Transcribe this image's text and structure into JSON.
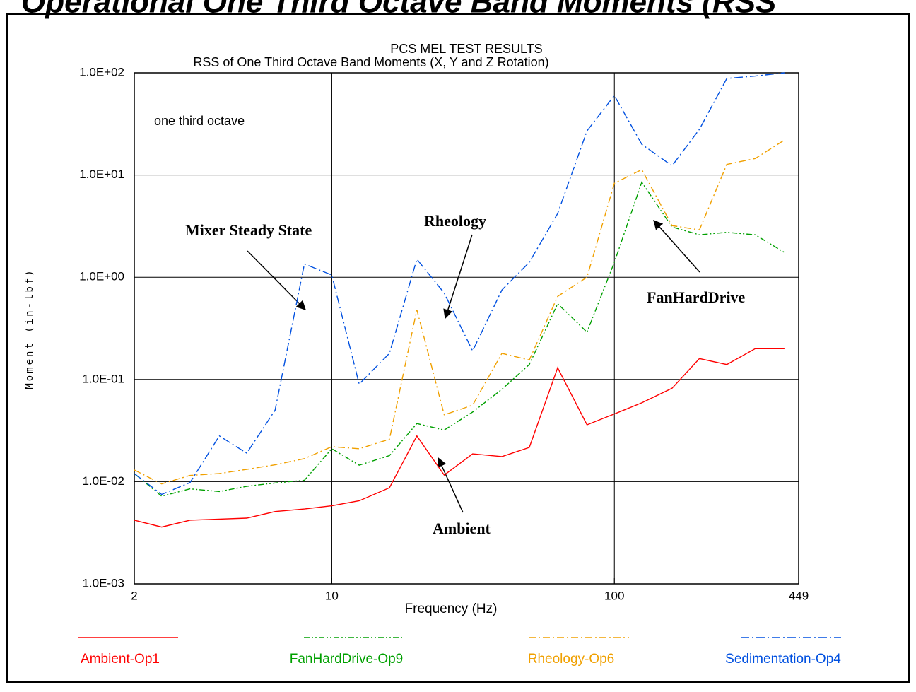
{
  "chart_data": {
    "type": "line",
    "banner": "Operational One Third Octave Band Moments (RSS",
    "title": "PCS MEL TEST RESULTS",
    "subtitle": "RSS of One Third Octave Band Moments (X, Y and Z Rotation)",
    "x_label": "Frequency (Hz)",
    "y_label": "Moment (in-lbf)",
    "note": "one third octave",
    "annotations": [
      "Mixer Steady State",
      "Rheology",
      "FanHardDrive",
      "Ambient"
    ],
    "x_log": true,
    "y_log": true,
    "grid": true,
    "xlim": [
      2,
      449
    ],
    "xticks": [
      2,
      10,
      100,
      449
    ],
    "ylim": [
      0.001,
      100
    ],
    "yticks": [
      {
        "value": 0.001,
        "label": "1.0E-03"
      },
      {
        "value": 0.01,
        "label": "1.0E-02"
      },
      {
        "value": 0.1,
        "label": "1.0E-01"
      },
      {
        "value": 1,
        "label": "1.0E+00"
      },
      {
        "value": 10,
        "label": "1.0E+01"
      },
      {
        "value": 100,
        "label": "1.0E+02"
      }
    ],
    "x": [
      2,
      2.5,
      3.15,
      4,
      5,
      6.3,
      8,
      10,
      12.5,
      16,
      20,
      25,
      31.5,
      40,
      50,
      63,
      80,
      100,
      125,
      160,
      200,
      250,
      315,
      400
    ],
    "series": [
      {
        "name": "Ambient-Op1",
        "color": "#ff0000",
        "dash": "",
        "values": [
          0.0042,
          0.0036,
          0.0042,
          0.0043,
          0.0044,
          0.0051,
          0.0054,
          0.0058,
          0.0065,
          0.0087,
          0.028,
          0.0116,
          0.0187,
          0.0176,
          0.0216,
          0.13,
          0.036,
          0.046,
          0.059,
          0.082,
          0.16,
          0.14,
          0.2,
          0.2
        ]
      },
      {
        "name": "FanHardDrive-Op9",
        "color": "#00a000",
        "dash": "8,3,2,3,2,3",
        "values": [
          0.012,
          0.0072,
          0.0085,
          0.008,
          0.009,
          0.0097,
          0.0103,
          0.021,
          0.0145,
          0.018,
          0.037,
          0.032,
          0.048,
          0.08,
          0.14,
          0.55,
          0.29,
          1.4,
          8.5,
          3.1,
          2.6,
          2.75,
          2.6,
          1.75
        ]
      },
      {
        "name": "Rheology-Op6",
        "color": "#f0a000",
        "dash": "10,4,2,4",
        "values": [
          0.013,
          0.0095,
          0.0115,
          0.012,
          0.0132,
          0.0146,
          0.0168,
          0.022,
          0.021,
          0.026,
          0.48,
          0.045,
          0.056,
          0.18,
          0.155,
          0.65,
          1.0,
          8.3,
          11.3,
          3.2,
          2.9,
          12.7,
          14.5,
          22
        ]
      },
      {
        "name": "Sedimentation-Op4",
        "color": "#0050e0",
        "dash": "12,4,2,4",
        "values": [
          0.012,
          0.0075,
          0.0098,
          0.028,
          0.019,
          0.05,
          1.35,
          1.05,
          0.09,
          0.18,
          1.5,
          0.7,
          0.19,
          0.75,
          1.4,
          4.2,
          27,
          60,
          20,
          12.3,
          28,
          88,
          93,
          100
        ]
      }
    ]
  }
}
